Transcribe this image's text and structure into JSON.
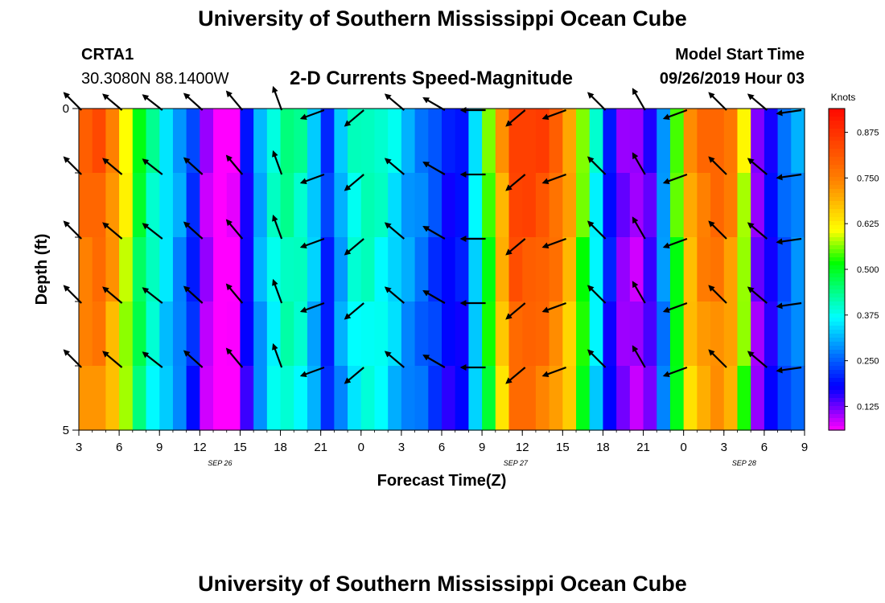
{
  "page": {
    "title_top": "University of Southern Mississippi Ocean Cube",
    "title_bottom": "University of Southern Mississippi Ocean Cube",
    "station_id": "CRTA1",
    "station_coords": "30.3080N 88.1400W",
    "model_start_label": "Model Start Time",
    "model_start_value": "09/26/2019 Hour 03"
  },
  "chart_data": {
    "type": "heatmap",
    "title": "2-D Currents Speed-Magnitude",
    "xlabel": "Forecast Time(Z)",
    "ylabel": "Depth (ft)",
    "ylim": [
      0,
      5
    ],
    "y_ticks": [
      "0",
      "5"
    ],
    "x_ticks": [
      "3",
      "6",
      "9",
      "12",
      "15",
      "18",
      "21",
      "0",
      "3",
      "6",
      "9",
      "12",
      "15",
      "18",
      "21",
      "0",
      "3",
      "6",
      "9"
    ],
    "date_labels": [
      {
        "label": "SEP 26",
        "hour_index": 10.5
      },
      {
        "label": "SEP 27",
        "hour_index": 32.5
      },
      {
        "label": "SEP 28",
        "hour_index": 49.5
      }
    ],
    "colorbar": {
      "label": "Knots",
      "ticks": [
        "0.875",
        "0.750",
        "0.625",
        "0.500",
        "0.375",
        "0.250",
        "0.125"
      ],
      "tick_values": [
        0.875,
        0.75,
        0.625,
        0.5,
        0.375,
        0.25,
        0.125
      ],
      "min": 0.06,
      "max": 0.94
    },
    "hours": 54,
    "depth_levels": 5,
    "speed_profile": [
      0.8,
      0.82,
      0.75,
      0.62,
      0.5,
      0.42,
      0.36,
      0.3,
      0.22,
      0.1,
      0.05,
      0.06,
      0.18,
      0.32,
      0.4,
      0.44,
      0.42,
      0.34,
      0.22,
      0.32,
      0.4,
      0.42,
      0.4,
      0.36,
      0.31,
      0.28,
      0.24,
      0.19,
      0.2,
      0.36,
      0.55,
      0.72,
      0.86,
      0.86,
      0.84,
      0.8,
      0.72,
      0.56,
      0.38,
      0.2,
      0.12,
      0.1,
      0.15,
      0.3,
      0.55,
      0.72,
      0.78,
      0.8,
      0.76,
      0.6,
      0.12,
      0.18,
      0.26,
      0.3
    ],
    "vector_times": [
      0,
      3,
      6,
      9,
      12,
      15,
      18,
      21,
      24,
      27,
      30,
      33,
      36,
      39,
      42,
      45,
      48,
      51,
      53.5
    ],
    "vector_directions_deg": [
      315,
      310,
      308,
      312,
      320,
      340,
      250,
      230,
      310,
      300,
      270,
      230,
      250,
      315,
      330,
      250,
      315,
      310,
      262
    ]
  }
}
